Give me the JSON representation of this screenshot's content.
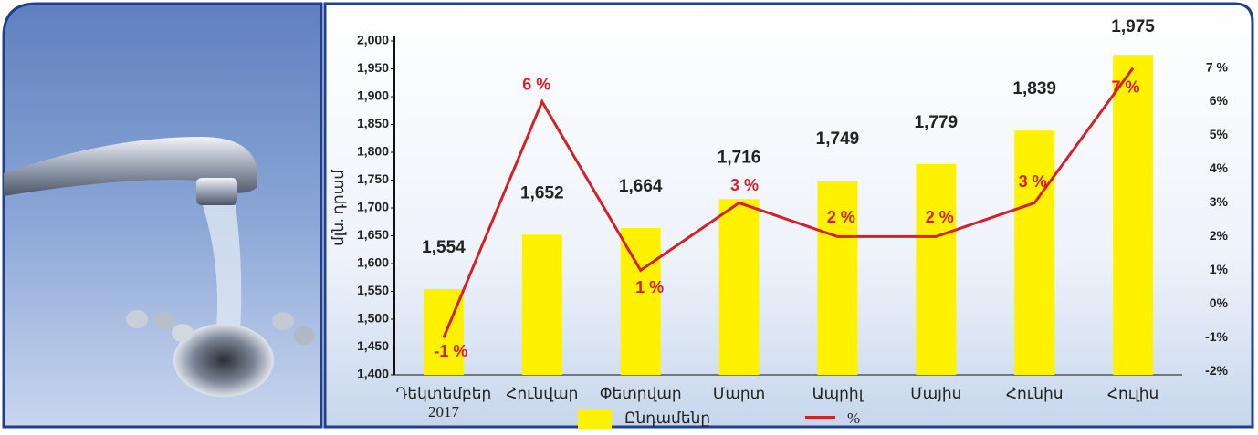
{
  "chart_data": {
    "type": "bar-line",
    "y_axis_label": "մլն. դրամ",
    "categories": [
      "Դեկտեմբեր 2017",
      "Հունվար",
      "Փետրվար",
      "Մարտ",
      "Ապրիլ",
      "Մայիս",
      "Հունիս",
      "Հուլիս"
    ],
    "series": [
      {
        "name": "Ընդամենը",
        "type": "bar",
        "color": "#fff200",
        "values": [
          1554,
          1652,
          1664,
          1716,
          1749,
          1779,
          1839,
          1975
        ],
        "value_labels": [
          "1,554",
          "1,652",
          "1,664",
          "1,716",
          "1,749",
          "1,779",
          "1,839",
          "1,975"
        ]
      },
      {
        "name": "%",
        "type": "line",
        "axis": "y2",
        "color": "#d42027",
        "values": [
          -1,
          6,
          1,
          3,
          2,
          2,
          3,
          7
        ],
        "value_labels": [
          "-1 %",
          "6 %",
          "1 %",
          "3 %",
          "2 %",
          "2 %",
          "3 %",
          "7 %"
        ]
      }
    ],
    "ylim": [
      1400,
      2000
    ],
    "yticks": [
      {
        "value": 1400,
        "label": "1,400"
      },
      {
        "value": 1450,
        "label": "1,450"
      },
      {
        "value": 1500,
        "label": "1,500"
      },
      {
        "value": 1550,
        "label": "1,550"
      },
      {
        "value": 1600,
        "label": "1,600"
      },
      {
        "value": 1650,
        "label": "1,650"
      },
      {
        "value": 1700,
        "label": "1,700"
      },
      {
        "value": 1750,
        "label": "1,750"
      },
      {
        "value": 1800,
        "label": "1,800"
      },
      {
        "value": 1850,
        "label": "1,850"
      },
      {
        "value": 1900,
        "label": "1,900"
      },
      {
        "value": 1950,
        "label": "1,950"
      },
      {
        "value": 2000,
        "label": "2,000"
      }
    ],
    "y2lim": [
      -2.1,
      7.8
    ],
    "y2ticks": [
      {
        "value": -2,
        "label": "-2%"
      },
      {
        "value": -1,
        "label": "-1%"
      },
      {
        "value": 0,
        "label": "0%"
      },
      {
        "value": 1,
        "label": "1%"
      },
      {
        "value": 2,
        "label": "2%"
      },
      {
        "value": 3,
        "label": "3%"
      },
      {
        "value": 4,
        "label": "4%"
      },
      {
        "value": 5,
        "label": "5%"
      },
      {
        "value": 6,
        "label": "6%"
      },
      {
        "value": 7,
        "label": "7 %"
      }
    ]
  }
}
